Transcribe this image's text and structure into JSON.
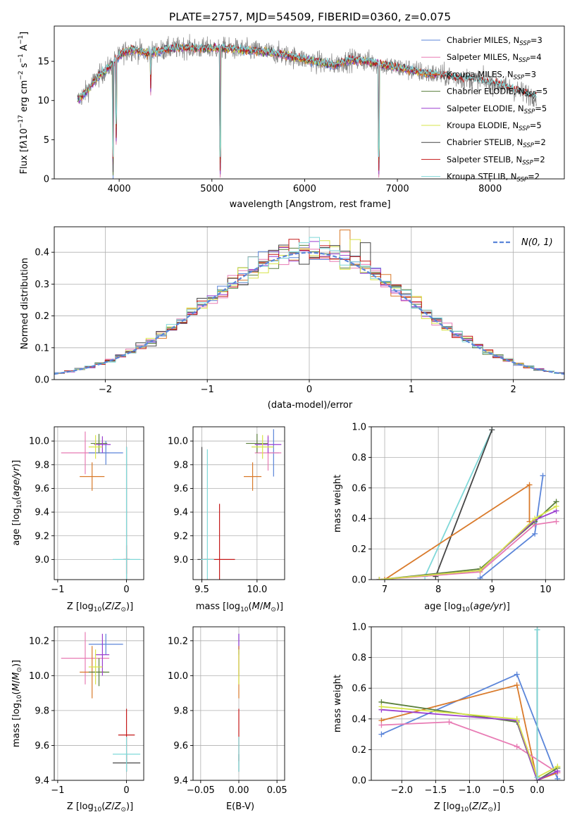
{
  "colors": {
    "Chabrier MILES": "#5b85d9",
    "Salpeter MILES": "#e87bb4",
    "Kroupa MILES": "#d97a2b",
    "Chabrier ELODIE": "#5a7f3c",
    "Salpeter ELODIE": "#9b3fd0",
    "Kroupa ELODIE": "#d7e44a",
    "Chabrier STELIB": "#454545",
    "Salpeter STELIB": "#c41a1a",
    "Kroupa STELIB": "#7fd8d8",
    "data": "#808080",
    "gaussian": "#5b85d9"
  },
  "chart_data": [
    {
      "id": "spectrum",
      "type": "line",
      "title": "PLATE=2757, MJD=54509, FIBERID=0360, z=0.075",
      "xlabel": "wavelength [Angstrom, rest frame]",
      "ylabel": "Flux [f_λ 10^-17 erg cm^-2 s^-1 A^-1]",
      "xlim": [
        3300,
        8800
      ],
      "ylim": [
        0,
        19.5
      ],
      "xticks": [
        4000,
        5000,
        6000,
        7000,
        8000
      ],
      "yticks": [
        0,
        5,
        10,
        15
      ],
      "grid": false,
      "legend_position": "top-right",
      "legend": [
        {
          "key": "Chabrier MILES",
          "label": "Chabrier MILES, N_SSP=3",
          "base": "Chabrier MILES, N",
          "sub": "SSP",
          "tail": "=3"
        },
        {
          "key": "Salpeter MILES",
          "label": "Salpeter MILES, N_SSP=4",
          "base": "Salpeter MILES, N",
          "sub": "SSP",
          "tail": "=4"
        },
        {
          "key": "Kroupa MILES",
          "label": "Kroupa MILES, N_SSP=3",
          "base": "Kroupa MILES, N",
          "sub": "SSP",
          "tail": "=3"
        },
        {
          "key": "Chabrier ELODIE",
          "label": "Chabrier ELODIE, N_SSP=5",
          "base": "Chabrier ELODIE, N",
          "sub": "SSP",
          "tail": "=5"
        },
        {
          "key": "Salpeter ELODIE",
          "label": "Salpeter ELODIE, N_SSP=5",
          "base": "Salpeter ELODIE, N",
          "sub": "SSP",
          "tail": "=5"
        },
        {
          "key": "Kroupa ELODIE",
          "label": "Kroupa ELODIE, N_SSP=5",
          "base": "Kroupa ELODIE, N",
          "sub": "SSP",
          "tail": "=5"
        },
        {
          "key": "Chabrier STELIB",
          "label": "Chabrier STELIB, N_SSP=2",
          "base": "Chabrier STELIB, N",
          "sub": "SSP",
          "tail": "=2"
        },
        {
          "key": "Salpeter STELIB",
          "label": "Salpeter STELIB, N_SSP=2",
          "base": "Salpeter STELIB, N",
          "sub": "SSP",
          "tail": "=2"
        },
        {
          "key": "Kroupa STELIB",
          "label": "Kroupa STELIB, N_SSP=2",
          "base": "Kroupa STELIB, N",
          "sub": "SSP",
          "tail": "=2"
        }
      ],
      "continuum": {
        "x": [
          3550,
          3650,
          3750,
          3850,
          3950,
          4050,
          4150,
          4300,
          4500,
          4700,
          4900,
          5100,
          5300,
          5500,
          5700,
          5900,
          6100,
          6300,
          6500,
          6700,
          6900,
          7100,
          7300,
          7500,
          7700,
          7900,
          8100,
          8300,
          8500
        ],
        "y": [
          10,
          11.2,
          12.8,
          13.8,
          15.0,
          16.2,
          16.5,
          16.0,
          16.5,
          16.8,
          16.6,
          16.7,
          16.5,
          16.3,
          16.0,
          15.5,
          15.0,
          14.5,
          15.2,
          15.0,
          14.4,
          14.0,
          13.5,
          13.2,
          12.8,
          12.6,
          12.0,
          11.2,
          10.5
        ]
      },
      "absorption_features": [
        {
          "x": 3934,
          "y": 0
        },
        {
          "x": 3968,
          "y": 4.2
        },
        {
          "x": 4340,
          "y": 10.5
        },
        {
          "x": 5090,
          "y": 0
        },
        {
          "x": 6800,
          "y": 0
        }
      ],
      "models_end_x": 7420
    },
    {
      "id": "residuals",
      "type": "line",
      "xlabel": "(data-model)/error",
      "ylabel": "Normed distribution",
      "xlim": [
        -2.5,
        2.5
      ],
      "ylim": [
        0,
        0.48
      ],
      "xticks": [
        -2,
        -1,
        0,
        1,
        2
      ],
      "xtick_labels": [
        "−2",
        "−1",
        "0",
        "1",
        "2"
      ],
      "yticks": [
        0.0,
        0.1,
        0.2,
        0.3,
        0.4
      ],
      "ytick_labels": [
        "0.0",
        "0.1",
        "0.2",
        "0.3",
        "0.4"
      ],
      "grid": true,
      "legend_position": "top-right",
      "gaussian_label": "N(0, 1)",
      "bin_width": 0.1,
      "notable_peaks": [
        {
          "key": "Kroupa MILES",
          "x": 0.35,
          "y": 0.47
        },
        {
          "key": "Kroupa ELODIE",
          "x": 0.45,
          "y": 0.44
        },
        {
          "key": "Chabrier STELIB",
          "x": 0.55,
          "y": 0.43
        }
      ]
    },
    {
      "id": "age-vs-Z",
      "type": "scatter",
      "xlabel": "Z [log10(Z/Z⊙)]",
      "ylabel": "age [log10(age/yr)]",
      "xlim": [
        -1.05,
        0.25
      ],
      "ylim": [
        8.83,
        10.12
      ],
      "xticks": [
        -1,
        0
      ],
      "xtick_labels": [
        "−1",
        "0"
      ],
      "yticks": [
        9.0,
        9.2,
        9.4,
        9.6,
        9.8,
        10.0
      ],
      "ytick_labels": [
        "9.0",
        "9.2",
        "9.4",
        "9.6",
        "9.8",
        "10.0"
      ],
      "grid": true,
      "points": [
        {
          "key": "Salpeter MILES",
          "x": -0.6,
          "y": 9.9,
          "xerr": 0.35,
          "yerr": 0.18
        },
        {
          "key": "Chabrier MILES",
          "x": -0.3,
          "y": 9.9,
          "xerr": 0.25,
          "yerr": 0.1
        },
        {
          "key": "Kroupa MILES",
          "x": -0.5,
          "y": 9.7,
          "xerr": 0.18,
          "yerr": 0.12
        },
        {
          "key": "Chabrier ELODIE",
          "x": -0.4,
          "y": 9.98,
          "xerr": 0.12,
          "yerr": 0.08
        },
        {
          "key": "Salpeter ELODIE",
          "x": -0.35,
          "y": 9.97,
          "xerr": 0.12,
          "yerr": 0.07
        },
        {
          "key": "Kroupa ELODIE",
          "x": -0.45,
          "y": 9.95,
          "xerr": 0.1,
          "yerr": 0.1
        },
        {
          "key": "Chabrier STELIB",
          "x": 0.0,
          "y": 9.0,
          "xerr": 0.04,
          "yerr": 0.95
        },
        {
          "key": "Salpeter STELIB",
          "x": 0.0,
          "y": 9.0,
          "xerr": 0.05,
          "yerr": 0.12
        },
        {
          "key": "Kroupa STELIB",
          "x": 0.0,
          "y": 9.0,
          "xerr": 0.2,
          "yerr": 0.95
        }
      ]
    },
    {
      "id": "age-vs-mass",
      "type": "scatter",
      "xlabel": "mass [log10(M/M⊙)]",
      "xlim": [
        9.42,
        10.25
      ],
      "ylim": [
        8.83,
        10.12
      ],
      "xticks": [
        9.5,
        10.0
      ],
      "xtick_labels": [
        "9.5",
        "10.0"
      ],
      "yticks": [
        9.0,
        9.2,
        9.4,
        9.6,
        9.8,
        10.0
      ],
      "ytick_labels": [
        "9.0",
        "9.2",
        "9.4",
        "9.6",
        "9.8",
        "10.0"
      ],
      "grid": true,
      "points": [
        {
          "key": "Chabrier MILES",
          "x": 10.15,
          "y": 9.9,
          "xerr": 0.05,
          "yerr": 0.2
        },
        {
          "key": "Salpeter MILES",
          "x": 10.1,
          "y": 9.9,
          "xerr": 0.12,
          "yerr": 0.15
        },
        {
          "key": "Kroupa MILES",
          "x": 9.96,
          "y": 9.7,
          "xerr": 0.08,
          "yerr": 0.12
        },
        {
          "key": "Chabrier ELODIE",
          "x": 10.0,
          "y": 9.98,
          "xerr": 0.1,
          "yerr": 0.08
        },
        {
          "key": "Salpeter ELODIE",
          "x": 10.1,
          "y": 9.97,
          "xerr": 0.12,
          "yerr": 0.07
        },
        {
          "key": "Kroupa ELODIE",
          "x": 10.05,
          "y": 9.95,
          "xerr": 0.1,
          "yerr": 0.1
        },
        {
          "key": "Chabrier STELIB",
          "x": 9.5,
          "y": 9.0,
          "xerr": 0.04,
          "yerr": 0.95
        },
        {
          "key": "Salpeter STELIB",
          "x": 9.66,
          "y": 9.0,
          "xerr": 0.14,
          "yerr": 0.47
        },
        {
          "key": "Kroupa STELIB",
          "x": 9.55,
          "y": 9.0,
          "xerr": 0.06,
          "yerr": 0.93
        }
      ]
    },
    {
      "id": "weight-vs-age",
      "type": "line",
      "xlabel": "age [log10(age/yr)]",
      "ylabel": "mass weight",
      "xlim": [
        6.75,
        10.35
      ],
      "ylim": [
        0,
        1.0
      ],
      "xticks": [
        7,
        8,
        9,
        10
      ],
      "yticks": [
        0.0,
        0.2,
        0.4,
        0.6,
        0.8,
        1.0
      ],
      "ytick_labels": [
        "0.0",
        "0.2",
        "0.4",
        "0.6",
        "0.8",
        "1.0"
      ],
      "grid": true,
      "series": [
        {
          "key": "Kroupa STELIB",
          "x": [
            7.75,
            9.0
          ],
          "y": [
            0.02,
            0.98
          ]
        },
        {
          "key": "Chabrier STELIB",
          "x": [
            7.95,
            9.0
          ],
          "y": [
            0.02,
            0.98
          ]
        },
        {
          "key": "Kroupa MILES",
          "x": [
            7.0,
            9.7,
            9.7
          ],
          "y": [
            0.0,
            0.62,
            0.38
          ]
        },
        {
          "key": "Chabrier MILES",
          "x": [
            8.78,
            9.8,
            9.95
          ],
          "y": [
            0.01,
            0.3,
            0.68
          ]
        },
        {
          "key": "Salpeter MILES",
          "x": [
            6.9,
            8.78,
            9.8,
            10.2
          ],
          "y": [
            0.0,
            0.05,
            0.36,
            0.38
          ]
        },
        {
          "key": "Chabrier ELODIE",
          "x": [
            6.9,
            8.78,
            9.8,
            10.2
          ],
          "y": [
            0.0,
            0.07,
            0.38,
            0.51
          ]
        },
        {
          "key": "Salpeter ELODIE",
          "x": [
            6.9,
            8.78,
            9.8,
            10.2
          ],
          "y": [
            0.0,
            0.06,
            0.39,
            0.45
          ]
        },
        {
          "key": "Kroupa ELODIE",
          "x": [
            6.9,
            8.78,
            9.8,
            10.2
          ],
          "y": [
            0.0,
            0.06,
            0.4,
            0.48
          ]
        }
      ]
    },
    {
      "id": "mass-vs-Z",
      "type": "scatter",
      "xlabel": "Z [log10(Z/Z⊙)]",
      "ylabel": "mass [log10(M/M⊙)]",
      "xlim": [
        -1.05,
        0.25
      ],
      "ylim": [
        9.4,
        10.28
      ],
      "xticks": [
        -1,
        0
      ],
      "xtick_labels": [
        "−1",
        "0"
      ],
      "yticks": [
        9.4,
        9.6,
        9.8,
        10.0,
        10.2
      ],
      "ytick_labels": [
        "9.4",
        "9.6",
        "9.8",
        "10.0",
        "10.2"
      ],
      "grid": true,
      "points": [
        {
          "key": "Chabrier MILES",
          "x": -0.3,
          "y": 10.18,
          "xerr": 0.25,
          "yerr": 0.06
        },
        {
          "key": "Salpeter MILES",
          "x": -0.6,
          "y": 10.1,
          "xerr": 0.35,
          "yerr": 0.15
        },
        {
          "key": "Kroupa MILES",
          "x": -0.5,
          "y": 10.02,
          "xerr": 0.18,
          "yerr": 0.15
        },
        {
          "key": "Chabrier ELODIE",
          "x": -0.4,
          "y": 10.02,
          "xerr": 0.15,
          "yerr": 0.08
        },
        {
          "key": "Salpeter ELODIE",
          "x": -0.35,
          "y": 10.12,
          "xerr": 0.1,
          "yerr": 0.12
        },
        {
          "key": "Kroupa ELODIE",
          "x": -0.45,
          "y": 10.05,
          "xerr": 0.1,
          "yerr": 0.1
        },
        {
          "key": "Chabrier STELIB",
          "x": 0.0,
          "y": 9.5,
          "xerr": 0.2,
          "yerr": 0.05
        },
        {
          "key": "Salpeter STELIB",
          "x": 0.0,
          "y": 9.66,
          "xerr": 0.12,
          "yerr": 0.15
        },
        {
          "key": "Kroupa STELIB",
          "x": 0.0,
          "y": 9.55,
          "xerr": 0.2,
          "yerr": 0.1
        }
      ]
    },
    {
      "id": "mass-vs-ebv",
      "type": "scatter",
      "xlabel": "E(B-V)",
      "xlim": [
        -0.06,
        0.06
      ],
      "ylim": [
        9.4,
        10.28
      ],
      "xticks": [
        -0.05,
        0.0,
        0.05
      ],
      "xtick_labels": [
        "−0.05",
        "0.00",
        "0.05"
      ],
      "yticks": [
        9.4,
        9.6,
        9.8,
        10.0,
        10.2
      ],
      "ytick_labels": [
        "9.4",
        "9.6",
        "9.8",
        "10.0",
        "10.2"
      ],
      "grid": true,
      "points": [
        {
          "key": "Chabrier MILES",
          "x": 0.0,
          "y": 10.18,
          "xerr": 0,
          "yerr": 0.06
        },
        {
          "key": "Salpeter ELODIE",
          "x": 0.0,
          "y": 10.12,
          "xerr": 0,
          "yerr": 0.12
        },
        {
          "key": "Kroupa MILES",
          "x": 0.0,
          "y": 10.02,
          "xerr": 0,
          "yerr": 0.15
        },
        {
          "key": "Kroupa ELODIE",
          "x": 0.0,
          "y": 10.05,
          "xerr": 0,
          "yerr": 0.1
        },
        {
          "key": "Salpeter STELIB",
          "x": 0.0,
          "y": 9.66,
          "xerr": 0,
          "yerr": 0.15
        },
        {
          "key": "Chabrier STELIB",
          "x": 0.0,
          "y": 9.5,
          "xerr": 0,
          "yerr": 0.05
        },
        {
          "key": "Kroupa STELIB",
          "x": 0.0,
          "y": 9.55,
          "xerr": 0,
          "yerr": 0.1
        }
      ]
    },
    {
      "id": "weight-vs-Z",
      "type": "line",
      "xlabel": "Z [log10(Z/Z⊙)]",
      "ylabel": "mass weight",
      "xlim": [
        -2.45,
        0.4
      ],
      "ylim": [
        0,
        1.0
      ],
      "xticks": [
        -2.0,
        -1.5,
        -1.0,
        -0.5,
        0.0
      ],
      "xtick_labels": [
        "−2.0",
        "−1.5",
        "−1.0",
        "−0.5",
        "0.0"
      ],
      "yticks": [
        0.0,
        0.2,
        0.4,
        0.6,
        0.8,
        1.0
      ],
      "ytick_labels": [
        "0.0",
        "0.2",
        "0.4",
        "0.6",
        "0.8",
        "1.0"
      ],
      "grid": true,
      "series": [
        {
          "key": "Chabrier MILES",
          "x": [
            -2.3,
            -0.3,
            0.3
          ],
          "y": [
            0.3,
            0.69,
            0.01
          ]
        },
        {
          "key": "Kroupa MILES",
          "x": [
            -2.3,
            -0.3,
            0.0,
            0.3
          ],
          "y": [
            0.39,
            0.62,
            0.0,
            0.05
          ]
        },
        {
          "key": "Salpeter MILES",
          "x": [
            -2.3,
            -1.3,
            -0.3,
            0.3
          ],
          "y": [
            0.36,
            0.38,
            0.22,
            0.05
          ]
        },
        {
          "key": "Chabrier ELODIE",
          "x": [
            -2.3,
            -0.3,
            0.0,
            0.3
          ],
          "y": [
            0.51,
            0.38,
            0.0,
            0.08
          ]
        },
        {
          "key": "Salpeter ELODIE",
          "x": [
            -2.3,
            -0.3,
            0.0,
            0.3
          ],
          "y": [
            0.46,
            0.39,
            0.0,
            0.06
          ]
        },
        {
          "key": "Kroupa ELODIE",
          "x": [
            -2.3,
            -0.3,
            0.0,
            0.3
          ],
          "y": [
            0.48,
            0.4,
            0.02,
            0.09
          ]
        },
        {
          "key": "Chabrier STELIB",
          "x": [
            0.0,
            0.0
          ],
          "y": [
            0.02,
            0.98
          ]
        },
        {
          "key": "Kroupa STELIB",
          "x": [
            0.0,
            0.0
          ],
          "y": [
            0.02,
            0.98
          ]
        }
      ]
    }
  ]
}
